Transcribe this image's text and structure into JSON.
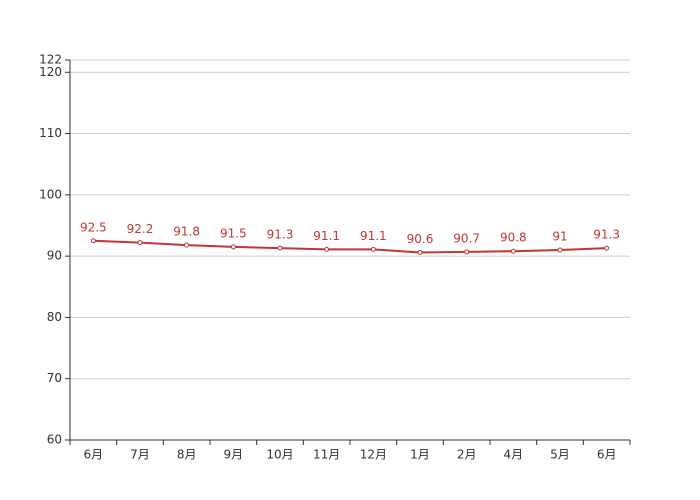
{
  "chart_data": {
    "type": "line",
    "categories": [
      "6月",
      "7月",
      "8月",
      "9月",
      "10月",
      "11月",
      "12月",
      "1月",
      "2月",
      "4月",
      "5月",
      "6月"
    ],
    "values": [
      92.5,
      92.2,
      91.8,
      91.5,
      91.3,
      91.1,
      91.1,
      90.6,
      90.7,
      90.8,
      91,
      91.3
    ],
    "color": "#c23531",
    "ylim": [
      60,
      122
    ],
    "yticks": [
      60,
      70,
      80,
      90,
      100,
      110,
      120,
      122
    ],
    "grid": true
  }
}
